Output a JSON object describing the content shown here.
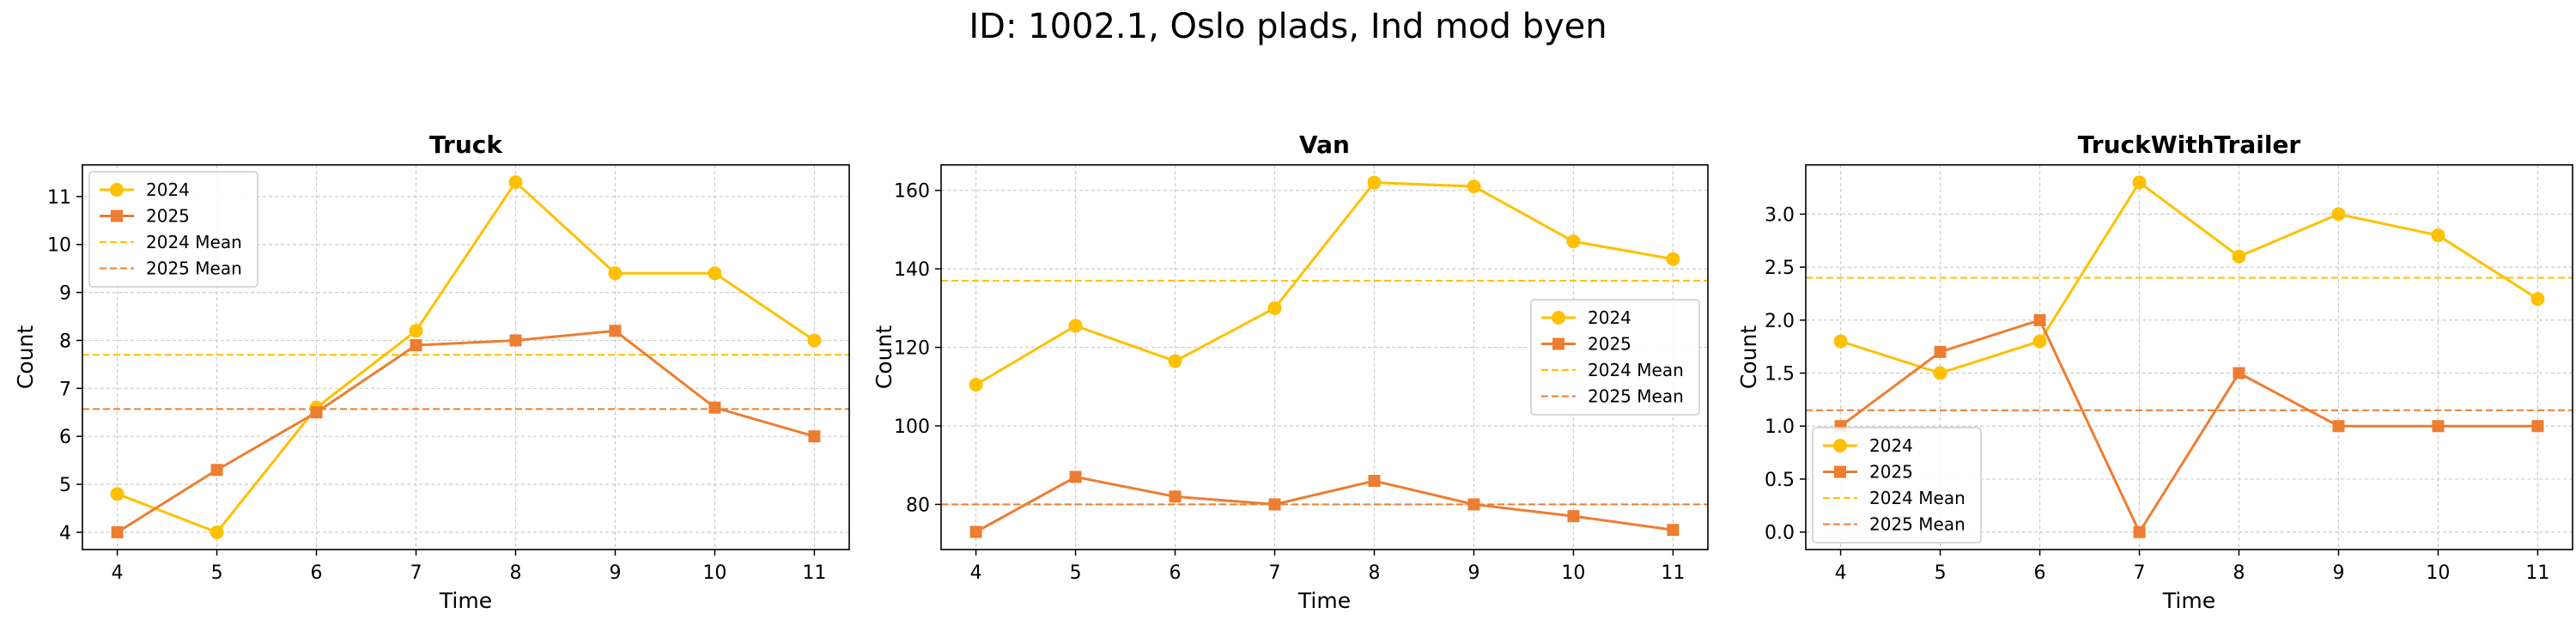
{
  "suptitle": "ID: 1002.1, Oslo plads, Ind mod byen",
  "colors": {
    "2024": "#FFC000",
    "2025": "#ED7D31",
    "grid": "#cccccc"
  },
  "legend_labels": {
    "s2024": "2024",
    "s2025": "2025",
    "m2024": "2024 Mean",
    "m2025": "2025 Mean"
  },
  "chart_data": [
    {
      "type": "line",
      "title": "Truck",
      "xlabel": "Time",
      "ylabel": "Count",
      "x": [
        4,
        5,
        6,
        7,
        8,
        9,
        10,
        11
      ],
      "xlim": [
        3.65,
        11.35
      ],
      "ylim": [
        3.64,
        11.66
      ],
      "yticks": [
        4,
        5,
        6,
        7,
        8,
        9,
        10,
        11
      ],
      "ytick_labels": [
        "4",
        "5",
        "6",
        "7",
        "8",
        "9",
        "10",
        "11"
      ],
      "legend_position": "upper left",
      "series": [
        {
          "name": "2024",
          "marker": "circle",
          "values": [
            4.8,
            4.0,
            6.6,
            8.2,
            11.3,
            9.4,
            9.4,
            8.0
          ]
        },
        {
          "name": "2025",
          "marker": "square",
          "values": [
            4.0,
            5.3,
            6.5,
            7.9,
            8.0,
            8.2,
            6.6,
            6.0
          ]
        }
      ],
      "means": [
        {
          "name": "2024 Mean",
          "value": 7.7
        },
        {
          "name": "2025 Mean",
          "value": 6.57
        }
      ]
    },
    {
      "type": "line",
      "title": "Van",
      "xlabel": "Time",
      "ylabel": "Count",
      "x": [
        4,
        5,
        6,
        7,
        8,
        9,
        10,
        11
      ],
      "xlim": [
        3.65,
        11.35
      ],
      "ylim": [
        68.5,
        166.5
      ],
      "yticks": [
        80,
        100,
        120,
        140,
        160
      ],
      "ytick_labels": [
        "80",
        "100",
        "120",
        "140",
        "160"
      ],
      "legend_position": "center right",
      "series": [
        {
          "name": "2024",
          "marker": "circle",
          "values": [
            110.5,
            125.5,
            116.5,
            130,
            162,
            161,
            147,
            142.5
          ]
        },
        {
          "name": "2025",
          "marker": "square",
          "values": [
            73,
            87,
            82,
            80,
            86,
            80,
            77,
            73.5
          ]
        }
      ],
      "means": [
        {
          "name": "2024 Mean",
          "value": 137
        },
        {
          "name": "2025 Mean",
          "value": 80
        }
      ]
    },
    {
      "type": "line",
      "title": "TruckWithTrailer",
      "xlabel": "Time",
      "ylabel": "Count",
      "x": [
        4,
        5,
        6,
        7,
        8,
        9,
        10,
        11
      ],
      "xlim": [
        3.65,
        11.35
      ],
      "ylim": [
        -0.165,
        3.465
      ],
      "yticks": [
        0.0,
        0.5,
        1.0,
        1.5,
        2.0,
        2.5,
        3.0
      ],
      "ytick_labels": [
        "0.0",
        "0.5",
        "1.0",
        "1.5",
        "2.0",
        "2.5",
        "3.0"
      ],
      "legend_position": "lower left",
      "series": [
        {
          "name": "2024",
          "marker": "circle",
          "values": [
            1.8,
            1.5,
            1.8,
            3.3,
            2.6,
            3.0,
            2.8,
            2.2
          ]
        },
        {
          "name": "2025",
          "marker": "square",
          "values": [
            1.0,
            1.7,
            2.0,
            0.0,
            1.5,
            1.0,
            1.0,
            1.0
          ]
        }
      ],
      "means": [
        {
          "name": "2024 Mean",
          "value": 2.4
        },
        {
          "name": "2025 Mean",
          "value": 1.15
        }
      ]
    }
  ]
}
